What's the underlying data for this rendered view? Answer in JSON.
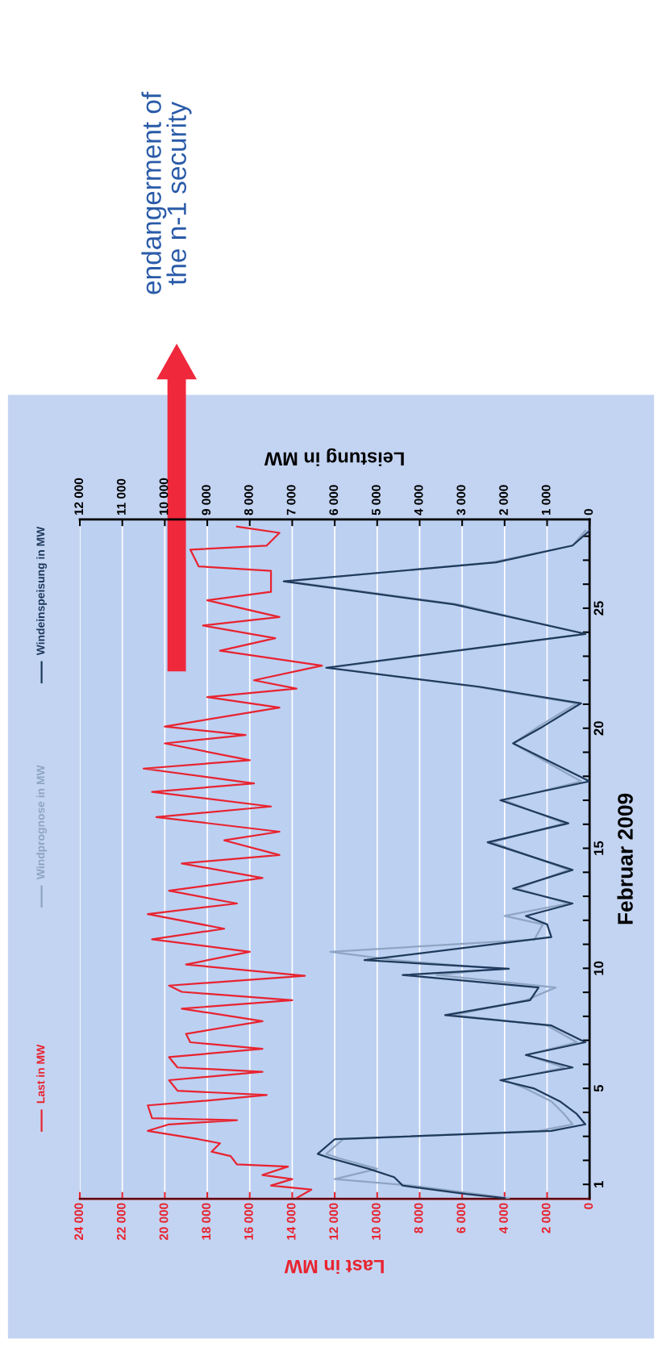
{
  "chart_data": {
    "type": "line",
    "xlabel": "Last in MW",
    "x2label": "Leistung in MW",
    "ylabel": "Februar 2009",
    "xlim": [
      24000,
      0
    ],
    "xticks": [
      0,
      {
        "value": 2000,
        "label": "2 000"
      },
      {
        "value": 4000,
        "label": "4 000"
      },
      {
        "value": 6000,
        "label": "6 000"
      },
      {
        "value": 8000,
        "label": "8 000"
      },
      {
        "value": 10000,
        "label": "10 000"
      },
      {
        "value": 12000,
        "label": "12 000"
      },
      {
        "value": 14000,
        "label": "14 000"
      },
      {
        "value": 16000,
        "label": "16 000"
      },
      {
        "value": 18000,
        "label": "18 000"
      },
      {
        "value": 20000,
        "label": "20 000"
      },
      {
        "value": 22000,
        "label": "22 000"
      },
      {
        "value": 24000,
        "label": "24 000"
      }
    ],
    "x2lim": [
      12000,
      0
    ],
    "x2ticks": [
      0,
      {
        "value": 1000,
        "label": "1 000"
      },
      {
        "value": 2000,
        "label": "2 000"
      },
      {
        "value": 3000,
        "label": "3 000"
      },
      {
        "value": 4000,
        "label": "4 000"
      },
      {
        "value": 5000,
        "label": "5 000"
      },
      {
        "value": 6000,
        "label": "6 000"
      },
      {
        "value": 7000,
        "label": "7 000"
      },
      {
        "value": 8000,
        "label": "8 000"
      },
      {
        "value": 9000,
        "label": "9 000"
      },
      {
        "value": 10000,
        "label": "10 000"
      },
      {
        "value": 11000,
        "label": "11 000"
      },
      {
        "value": 12000,
        "label": "12 000"
      }
    ],
    "ylim": [
      0.4,
      28.7
    ],
    "yticks": [
      1,
      {
        "value": 2,
        "label": null
      },
      {
        "value": 3,
        "label": null
      },
      {
        "value": 4,
        "label": null
      },
      5,
      {
        "value": 6,
        "label": null
      },
      {
        "value": 7,
        "label": null
      },
      {
        "value": 8,
        "label": null
      },
      {
        "value": 9,
        "label": null
      },
      10,
      {
        "value": 11,
        "label": null
      },
      {
        "value": 12,
        "label": null
      },
      {
        "value": 13,
        "label": null
      },
      {
        "value": 14,
        "label": null
      },
      15,
      {
        "value": 16,
        "label": null
      },
      {
        "value": 17,
        "label": null
      },
      {
        "value": 18,
        "label": null
      },
      {
        "value": 19,
        "label": null
      },
      20,
      {
        "value": 21,
        "label": null
      },
      {
        "value": 22,
        "label": null
      },
      {
        "value": 23,
        "label": null
      },
      {
        "value": 24,
        "label": null
      },
      25,
      {
        "value": 26,
        "label": null
      },
      {
        "value": 27,
        "label": null
      },
      {
        "value": 28,
        "label": null
      }
    ],
    "grid": "x",
    "legend": "left",
    "line_style": "solid",
    "series": [
      {
        "name": "Last in MW",
        "color": "#e8232f",
        "values": [
          0.43,
          0.78,
          0.95,
          1.22,
          1.39,
          1.74,
          1.83,
          2.18,
          2.36,
          2.71,
          2.88,
          3.23,
          3.5,
          3.67,
          3.76,
          4.29,
          4.46,
          4.72,
          4.9,
          5.34,
          5.69,
          5.87,
          6.3,
          6.65,
          6.92,
          7.27,
          7.8,
          8.32,
          8.67,
          9.02,
          9.28,
          9.69,
          10.16,
          10.69,
          11.21,
          11.65,
          12.26,
          12.7,
          13.23,
          13.76,
          14.37,
          14.72,
          15.33,
          15.69,
          16.3,
          16.74,
          17.35,
          17.7,
          18.32,
          18.67,
          19.37,
          19.72,
          20.07,
          20.86,
          21.3,
          21.65,
          22.0,
          22.61,
          23.23,
          23.75,
          24.28,
          24.63,
          25.33,
          25.68,
          26.56,
          26.74,
          27.44,
          27.61,
          28.14,
          28.4
        ],
        "x": [
          13800,
          13100,
          15000,
          14000,
          15400,
          14200,
          16600,
          16900,
          17800,
          17400,
          18400,
          20800,
          19800,
          16600,
          20600,
          20800,
          18400,
          15200,
          19400,
          19800,
          15400,
          19400,
          19800,
          15400,
          18800,
          19000,
          15400,
          19200,
          14000,
          19200,
          19800,
          13400,
          19000,
          16000,
          20600,
          17200,
          20800,
          16600,
          19800,
          15400,
          19200,
          14600,
          17200,
          14600,
          20400,
          15000,
          20600,
          15800,
          21000,
          16000,
          20000,
          16200,
          20000,
          14600,
          18000,
          13800,
          15800,
          12600,
          17400,
          14800,
          18200,
          14600,
          18000,
          15000,
          15000,
          18400,
          18800,
          15200,
          14600,
          16600
        ]
      },
      {
        "name": "Windprognose in MW",
        "color": "#8fa5c4",
        "axis": "x2",
        "values": [
          0.43,
          0.95,
          1.22,
          1.65,
          2.09,
          2.27,
          2.88,
          3.23,
          3.5,
          3.93,
          4.46,
          4.99,
          5.34,
          5.87,
          6.39,
          6.92,
          7.62,
          8.05,
          8.67,
          9.2,
          9.72,
          9.98,
          10.34,
          10.69,
          11.2,
          11.83,
          12.18,
          12.7,
          13.32,
          14.1,
          15.25,
          16.04,
          17.0,
          17.79,
          19.37,
          20.07,
          21.04,
          21.73,
          22.52,
          23.93,
          25.16,
          26.12,
          26.91,
          27.61,
          28.23
        ],
        "x": [
          1900,
          4200,
          6000,
          5000,
          5900,
          6200,
          5800,
          1200,
          400,
          600,
          900,
          1500,
          2000,
          600,
          1500,
          300,
          1000,
          3200,
          1500,
          800,
          3600,
          2100,
          4600,
          6100,
          1300,
          1100,
          2000,
          500,
          1700,
          500,
          2300,
          600,
          2000,
          200,
          1800,
          1200,
          300,
          2700,
          6100,
          100,
          3100,
          7100,
          2300,
          400,
          100
        ]
      },
      {
        "name": "Windeinspeisung in MW",
        "color": "#1f3a5c",
        "axis": "x2",
        "values": [
          0.43,
          0.6,
          0.95,
          1.3,
          1.65,
          2.09,
          2.27,
          2.88,
          3.23,
          3.5,
          3.93,
          4.46,
          4.99,
          5.34,
          5.87,
          6.39,
          6.92,
          7.62,
          8.05,
          8.67,
          9.2,
          9.72,
          9.98,
          10.34,
          11.3,
          11.83,
          12.18,
          12.7,
          13.32,
          14.1,
          15.25,
          16.04,
          17.0,
          17.79,
          19.37,
          20.07,
          21.04,
          21.73,
          22.52,
          23.93,
          25.16,
          26.12,
          26.91,
          27.61,
          28.23
        ],
        "x": [
          2000,
          2900,
          4400,
          4600,
          5200,
          6100,
          6400,
          6000,
          900,
          100,
          300,
          700,
          1300,
          2100,
          400,
          1500,
          100,
          900,
          3400,
          1400,
          1200,
          4400,
          1900,
          5300,
          900,
          1000,
          1500,
          400,
          1800,
          400,
          2400,
          500,
          2100,
          0,
          1800,
          1100,
          200,
          2600,
          6200,
          100,
          3200,
          7200,
          2200,
          400,
          0
        ]
      }
    ],
    "annotations": [
      "endangerment of\nthe n-1 security"
    ]
  }
}
